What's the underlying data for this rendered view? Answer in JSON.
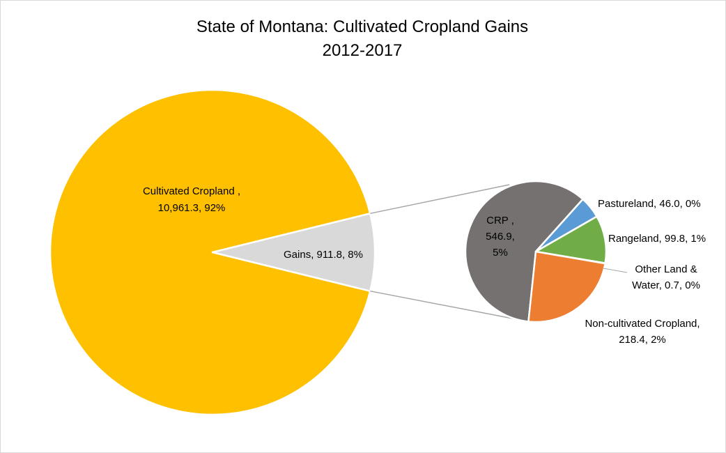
{
  "chart_data": {
    "type": "pie",
    "subtype": "pie-of-pie",
    "title": "State of Montana: Cultivated Cropland Gains",
    "subtitle": "2012-2017",
    "primary": {
      "slices": [
        {
          "name": "Cultivated Cropland ,",
          "value": 10961.3,
          "percent": "92%",
          "value_label": "10,961.3, 92%",
          "color": "#ffc000"
        },
        {
          "name": "Gains",
          "value": 911.8,
          "percent": "8%",
          "label": "Gains, 911.8, 8%",
          "color": "#d9d9d9"
        }
      ]
    },
    "secondary": {
      "slices": [
        {
          "name": "CRP ,",
          "value": 546.9,
          "percent": "5%",
          "value_label": "546.9,",
          "percent_label": "5%",
          "color": "#767171"
        },
        {
          "name": "Pastureland",
          "value": 46.0,
          "percent": "0%",
          "label": "Pastureland, 46.0, 0%",
          "color": "#5b9bd5"
        },
        {
          "name": "Rangeland",
          "value": 99.8,
          "percent": "1%",
          "label": "Rangeland, 99.8, 1%",
          "color": "#70ad47"
        },
        {
          "name": "Other Land &",
          "value": 0.7,
          "percent": "0%",
          "label_line2": "Water, 0.7, 0%",
          "color": "#4472c4"
        },
        {
          "name": "Non-cultivated Cropland,",
          "value": 218.4,
          "percent": "2%",
          "label_line2": "218.4, 2%",
          "color": "#ed7d31"
        }
      ]
    }
  }
}
